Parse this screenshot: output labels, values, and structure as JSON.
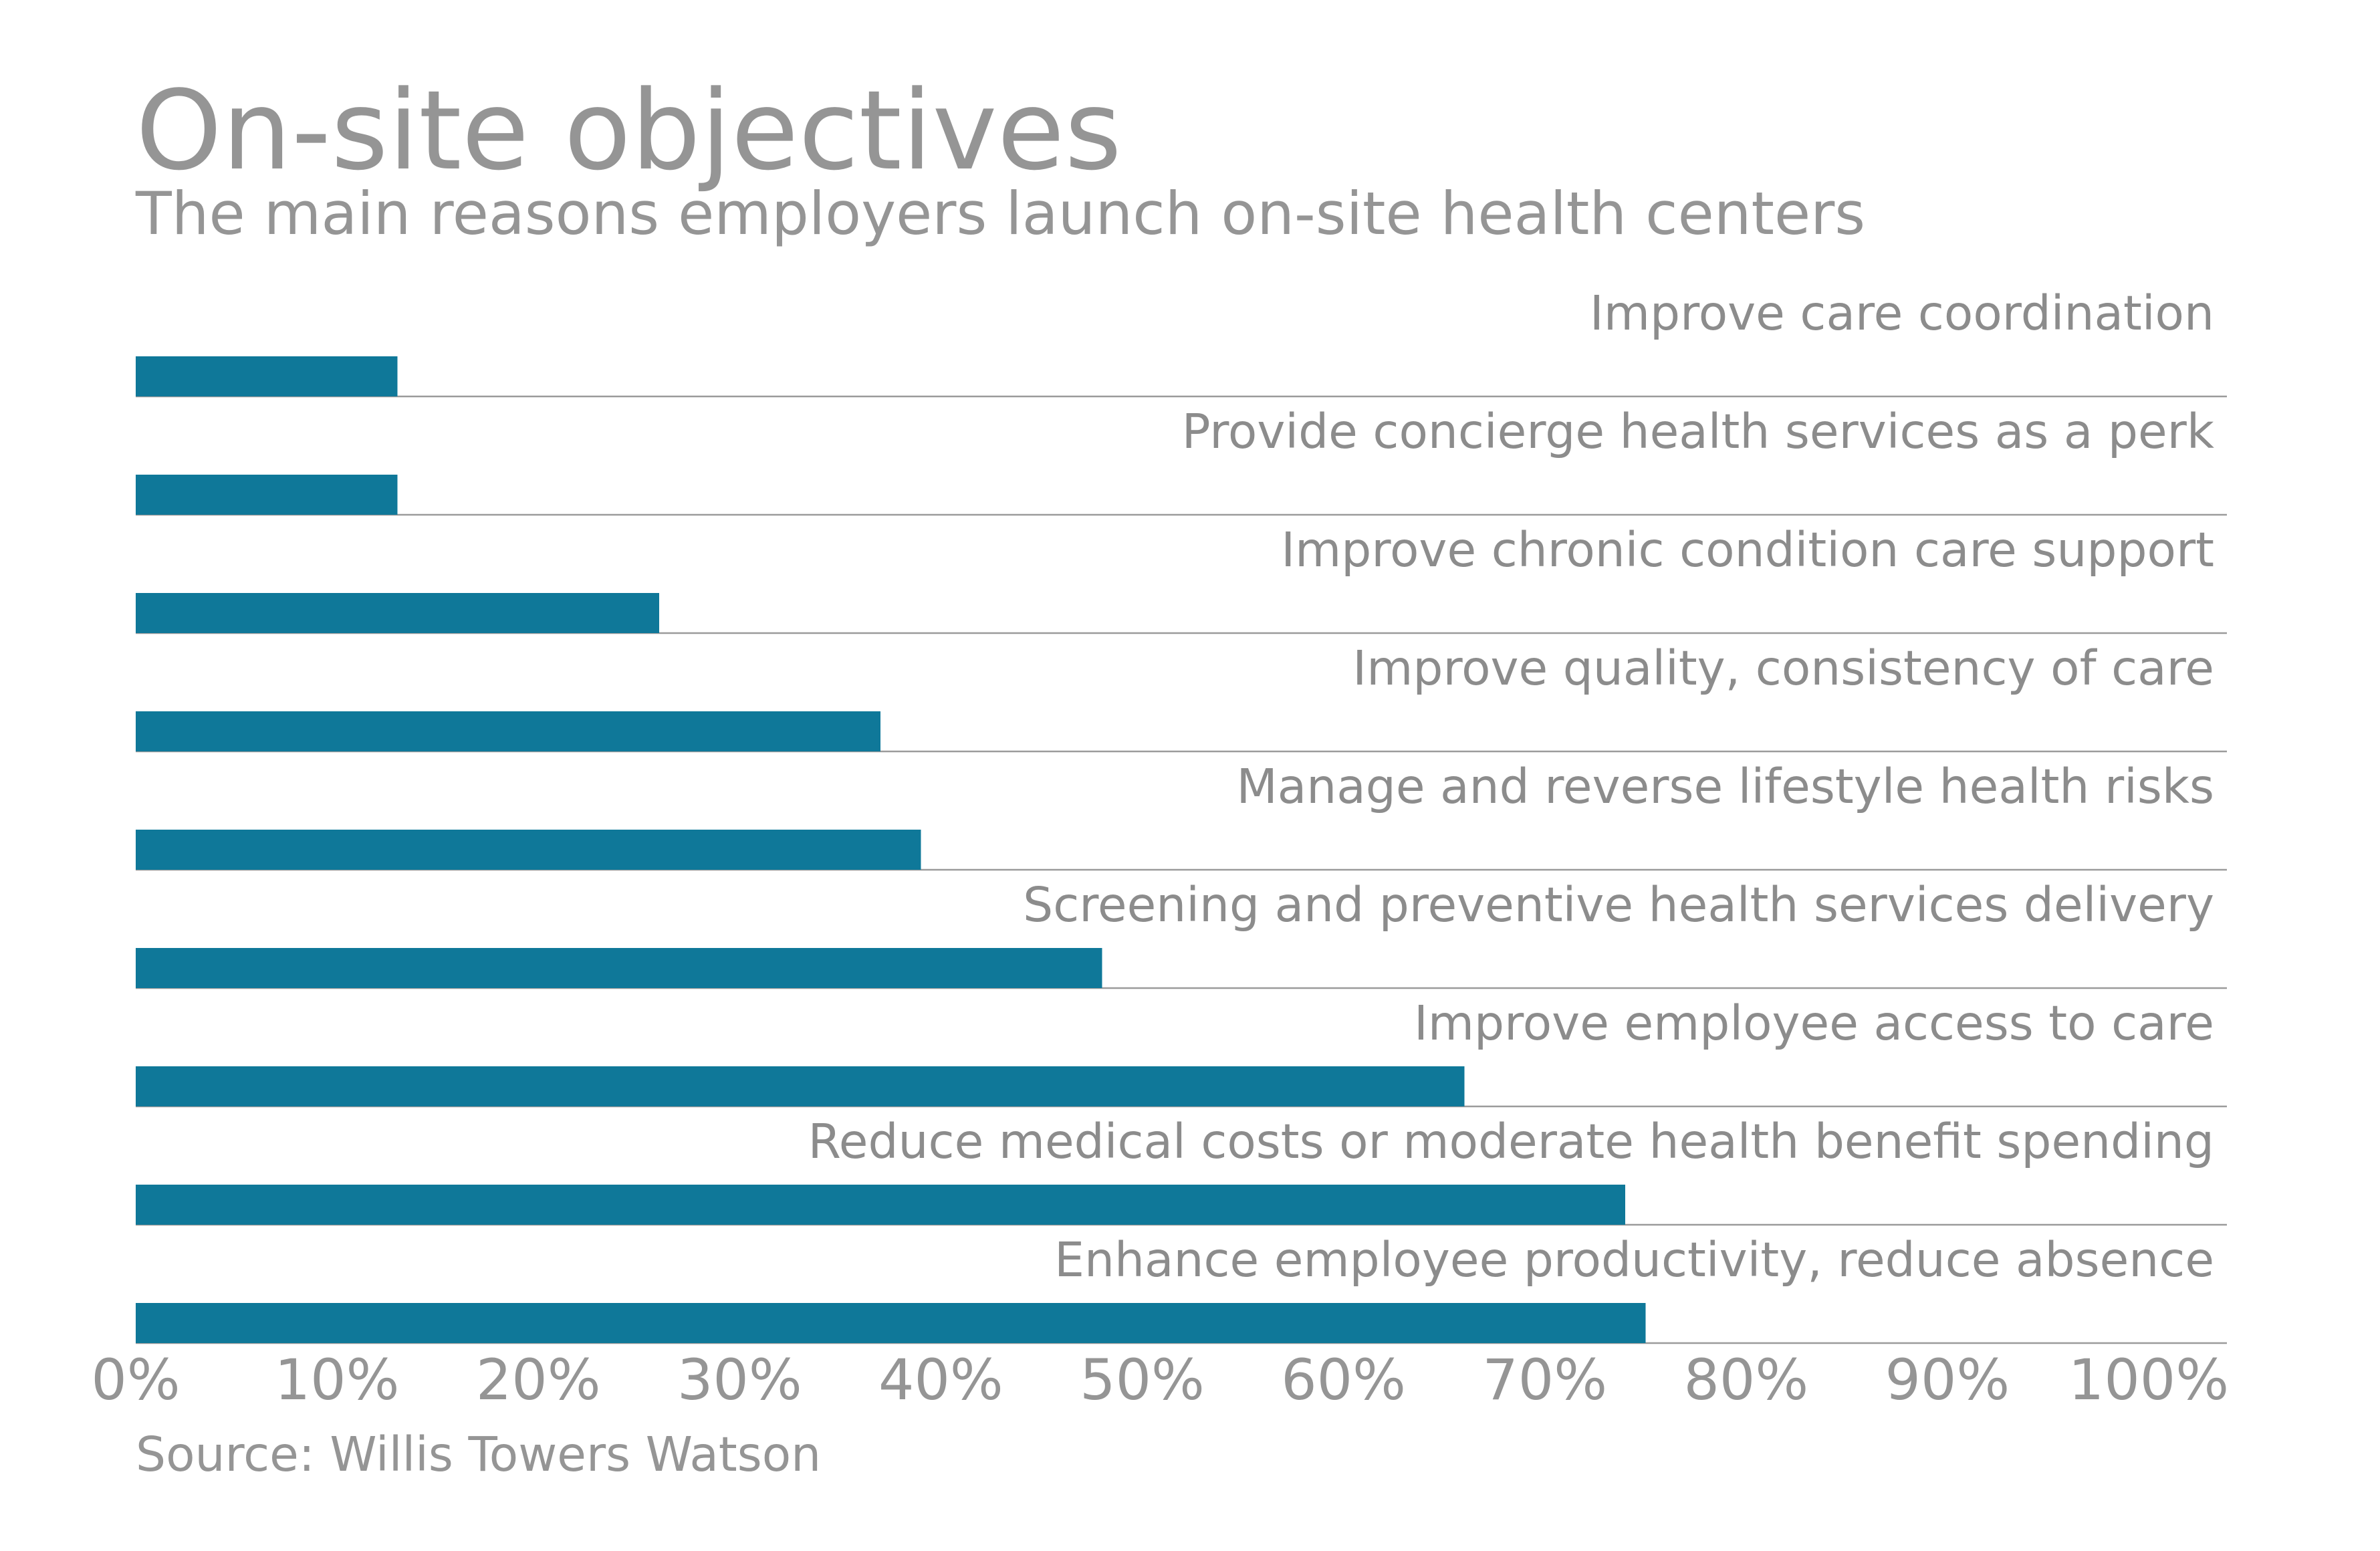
{
  "header": {
    "title": "On-site objectives",
    "subtitle": "The main reasons employers launch on-site health centers"
  },
  "footer": {
    "source": "Source: Willis Towers Watson"
  },
  "colors": {
    "bar": "#0f7899",
    "text": "#959595",
    "separator": "#9b9b9b"
  },
  "chart_data": {
    "type": "bar",
    "orientation": "horizontal",
    "title": "On-site objectives",
    "subtitle": "The main reasons employers launch on-site health centers",
    "categories": [
      "Improve care coordination",
      "Provide concierge health services as a perk",
      "Improve chronic condition care support",
      "Improve quality, consistency of care",
      "Manage and reverse lifestyle health risks",
      "Screening and preventive health services delivery",
      "Improve employee access to care",
      "Reduce medical costs or moderate health benefit spending",
      "Enhance employee productivity, reduce absence"
    ],
    "values": [
      13,
      13,
      26,
      37,
      39,
      48,
      66,
      74,
      75
    ],
    "value_unit": "%",
    "xlim": [
      0,
      100
    ],
    "x_ticks": [
      "0%",
      "10%",
      "20%",
      "30%",
      "40%",
      "50%",
      "60%",
      "70%",
      "80%",
      "90%",
      "100%"
    ],
    "grid": false,
    "legend": "none"
  }
}
